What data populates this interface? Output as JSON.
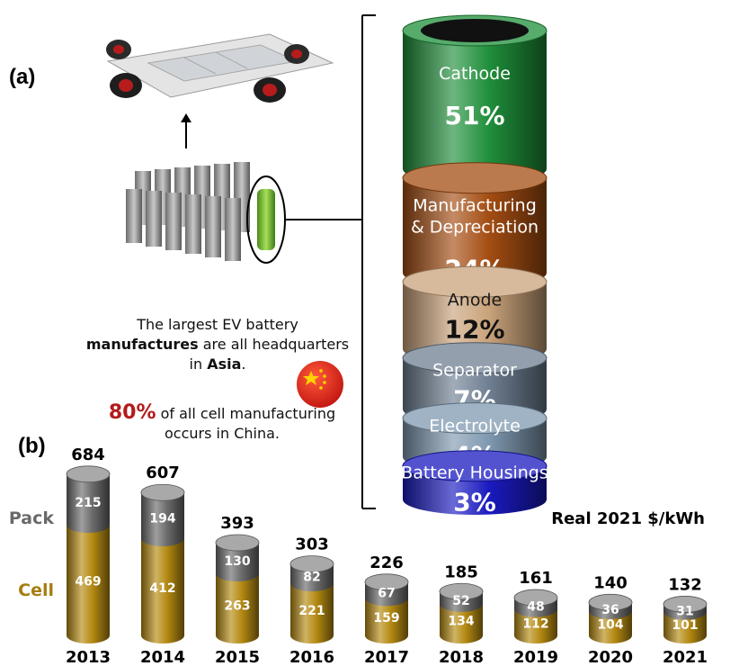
{
  "panel_a_label": "(a)",
  "panel_b_label": "(b)",
  "note": {
    "line1": "The largest EV battery",
    "line2_bold": "manufactures",
    "line2_rest": " are all headquarters",
    "line3_pre": "in ",
    "line3_bold": "Asia",
    "line3_post": ".",
    "pct": "80%",
    "line4_rest": " of all cell manufacturing",
    "line5": "occurs in China."
  },
  "legend": {
    "pack": "Pack",
    "cell": "Cell",
    "unit": "Real 2021 $/kWh"
  },
  "colors": {
    "cathode": "#1f8f3a",
    "manufacturing": "#a44d12",
    "anode": "#c9a27a",
    "separator": "#6f7f92",
    "electrolyte": "#7f99b0",
    "housings": "#1a1ac0",
    "pack": "#6b6b6b",
    "cell": "#b58a12"
  },
  "chart_data": [
    {
      "type": "pie",
      "subtype": "stacked-cylinder-breakdown",
      "labels": [
        "Cathode",
        "Manufacturing & Depreciation",
        "Anode",
        "Separator",
        "Electrolyte",
        "Battery Housings"
      ],
      "values": [
        51,
        24,
        12,
        7,
        4,
        3
      ],
      "value_labels": [
        "51%",
        "24%",
        "12%",
        "7%",
        "4%",
        "3%"
      ],
      "colors": [
        "#1f8f3a",
        "#a44d12",
        "#c9a27a",
        "#6f7f92",
        "#7f99b0",
        "#1a1ac0"
      ]
    },
    {
      "type": "bar",
      "subtype": "stacked",
      "categories": [
        "2013",
        "2014",
        "2015",
        "2016",
        "2017",
        "2018",
        "2019",
        "2020",
        "2021"
      ],
      "series": [
        {
          "name": "Cell",
          "values": [
            469,
            412,
            263,
            221,
            159,
            134,
            112,
            104,
            101
          ]
        },
        {
          "name": "Pack",
          "values": [
            215,
            194,
            130,
            82,
            67,
            52,
            48,
            36,
            31
          ]
        }
      ],
      "totals": [
        684,
        607,
        393,
        303,
        226,
        185,
        161,
        140,
        132
      ],
      "ylabel": "Real 2021 $/kWh",
      "ylim": [
        0,
        700
      ],
      "grid": false
    }
  ]
}
